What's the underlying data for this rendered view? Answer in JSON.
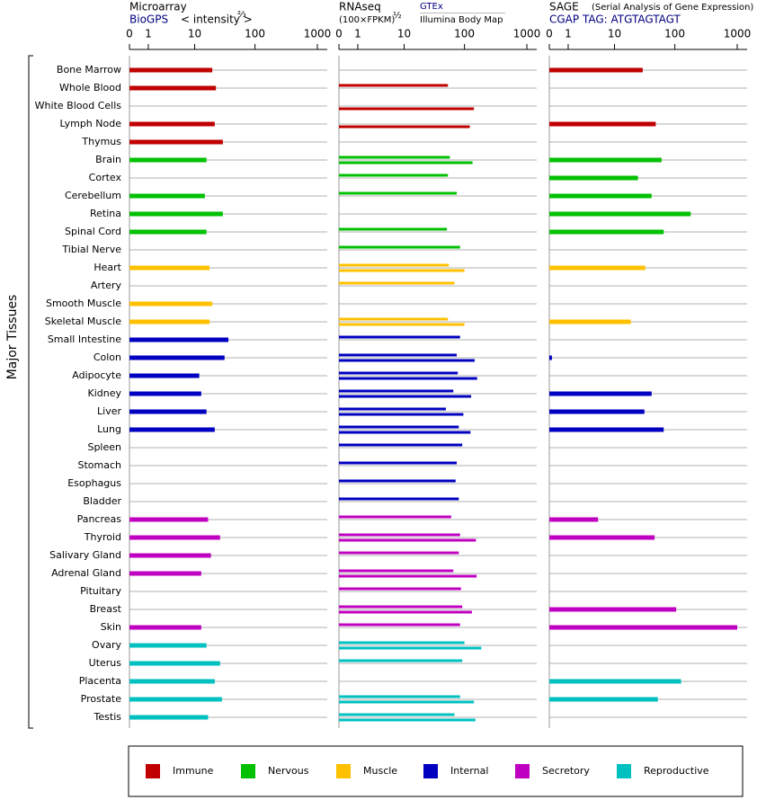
{
  "chart_data": {
    "type": "bar",
    "orientation": "horizontal",
    "y_label": "Major Tissues",
    "groups": [
      {
        "name": "Immune",
        "color": "#c00000",
        "categories": [
          "Bone Marrow",
          "Whole Blood",
          "White Blood Cells",
          "Lymph Node",
          "Thymus"
        ]
      },
      {
        "name": "Nervous",
        "color": "#00c000",
        "categories": [
          "Brain",
          "Cortex",
          "Cerebellum",
          "Retina",
          "Spinal Cord",
          "Tibial Nerve"
        ]
      },
      {
        "name": "Muscle",
        "color": "#ffc000",
        "categories": [
          "Heart",
          "Artery",
          "Smooth Muscle",
          "Skeletal Muscle"
        ]
      },
      {
        "name": "Internal",
        "color": "#0000c0",
        "categories": [
          "Small Intestine",
          "Colon",
          "Adipocyte",
          "Kidney",
          "Liver",
          "Lung",
          "Spleen",
          "Stomach",
          "Esophagus",
          "Bladder"
        ]
      },
      {
        "name": "Secretory",
        "color": "#c000c0",
        "categories": [
          "Pancreas",
          "Thyroid",
          "Salivary Gland",
          "Adrenal Gland",
          "Pituitary",
          "Breast",
          "Skin"
        ]
      },
      {
        "name": "Reproductive",
        "color": "#00c0c0",
        "categories": [
          "Ovary",
          "Uterus",
          "Placenta",
          "Prostate",
          "Testis"
        ]
      }
    ],
    "panels": [
      {
        "title": "Microarray",
        "unit": "< intensity >",
        "unit_exponent": "⅔",
        "xscale": "symlog",
        "xlim": [
          0,
          1000
        ],
        "xticks": [
          0,
          1,
          10,
          100,
          1000
        ],
        "series": [
          {
            "name": "BioGPS",
            "values": [
              [
                20,
                23,
                null,
                22,
                30
              ],
              [
                16,
                null,
                15,
                30,
                16,
                null
              ],
              [
                18,
                null,
                20,
                18
              ],
              [
                37,
                32,
                12,
                13,
                16,
                22,
                null,
                null,
                null,
                null
              ],
              [
                17,
                27,
                19,
                13,
                null,
                null,
                13
              ],
              [
                16,
                27,
                22,
                29,
                17
              ]
            ]
          }
        ]
      },
      {
        "title": "RNAseq",
        "unit": "(100×FPKM)",
        "unit_exponent": "½",
        "xscale": "symlog",
        "xlim": [
          0,
          1000
        ],
        "xticks": [
          0,
          1,
          10,
          100,
          1000
        ],
        "series": [
          {
            "name": "GTEx",
            "values": [
              [
                null,
                54,
                null,
                null,
                null
              ],
              [
                58,
                54,
                75,
                null,
                52,
                85
              ],
              [
                56,
                69,
                null,
                54
              ],
              [
                85,
                75,
                78,
                66,
                50,
                81,
                92,
                75,
                72,
                81
              ],
              [
                61,
                85,
                81,
                66,
                88,
                92,
                85
              ],
              [
                100,
                92,
                null,
                85,
                69
              ]
            ]
          },
          {
            "name": "Illumina Body Map",
            "values": [
              [
                null,
                null,
                142,
                122,
                null
              ],
              [
                135,
                null,
                null,
                null,
                null,
                null
              ],
              [
                100,
                null,
                null,
                100
              ],
              [
                null,
                146,
                160,
                128,
                96,
                125,
                null,
                null,
                null,
                null
              ],
              [
                null,
                153,
                null,
                157,
                null,
                132,
                null
              ],
              [
                187,
                null,
                null,
                142,
                150
              ]
            ]
          }
        ]
      },
      {
        "title": "SAGE",
        "subtitle": "(Serial Analysis of Gene Expression)",
        "xscale": "symlog",
        "xlim": [
          0,
          1000
        ],
        "xticks": [
          0,
          1,
          10,
          100,
          1000
        ],
        "series": [
          {
            "name": "CGAP TAG: ATGTAGTAGT",
            "values": [
              [
                30,
                null,
                null,
                49,
                null
              ],
              [
                61,
                25,
                42,
                180,
                66,
                null
              ],
              [
                33,
                null,
                null,
                19
              ],
              [
                null,
                0.1,
                null,
                42,
                32,
                66,
                null,
                null,
                null,
                null
              ],
              [
                5,
                47,
                null,
                null,
                null,
                105,
                1000
              ],
              [
                null,
                null,
                126,
                53,
                null
              ]
            ]
          }
        ]
      }
    ]
  }
}
